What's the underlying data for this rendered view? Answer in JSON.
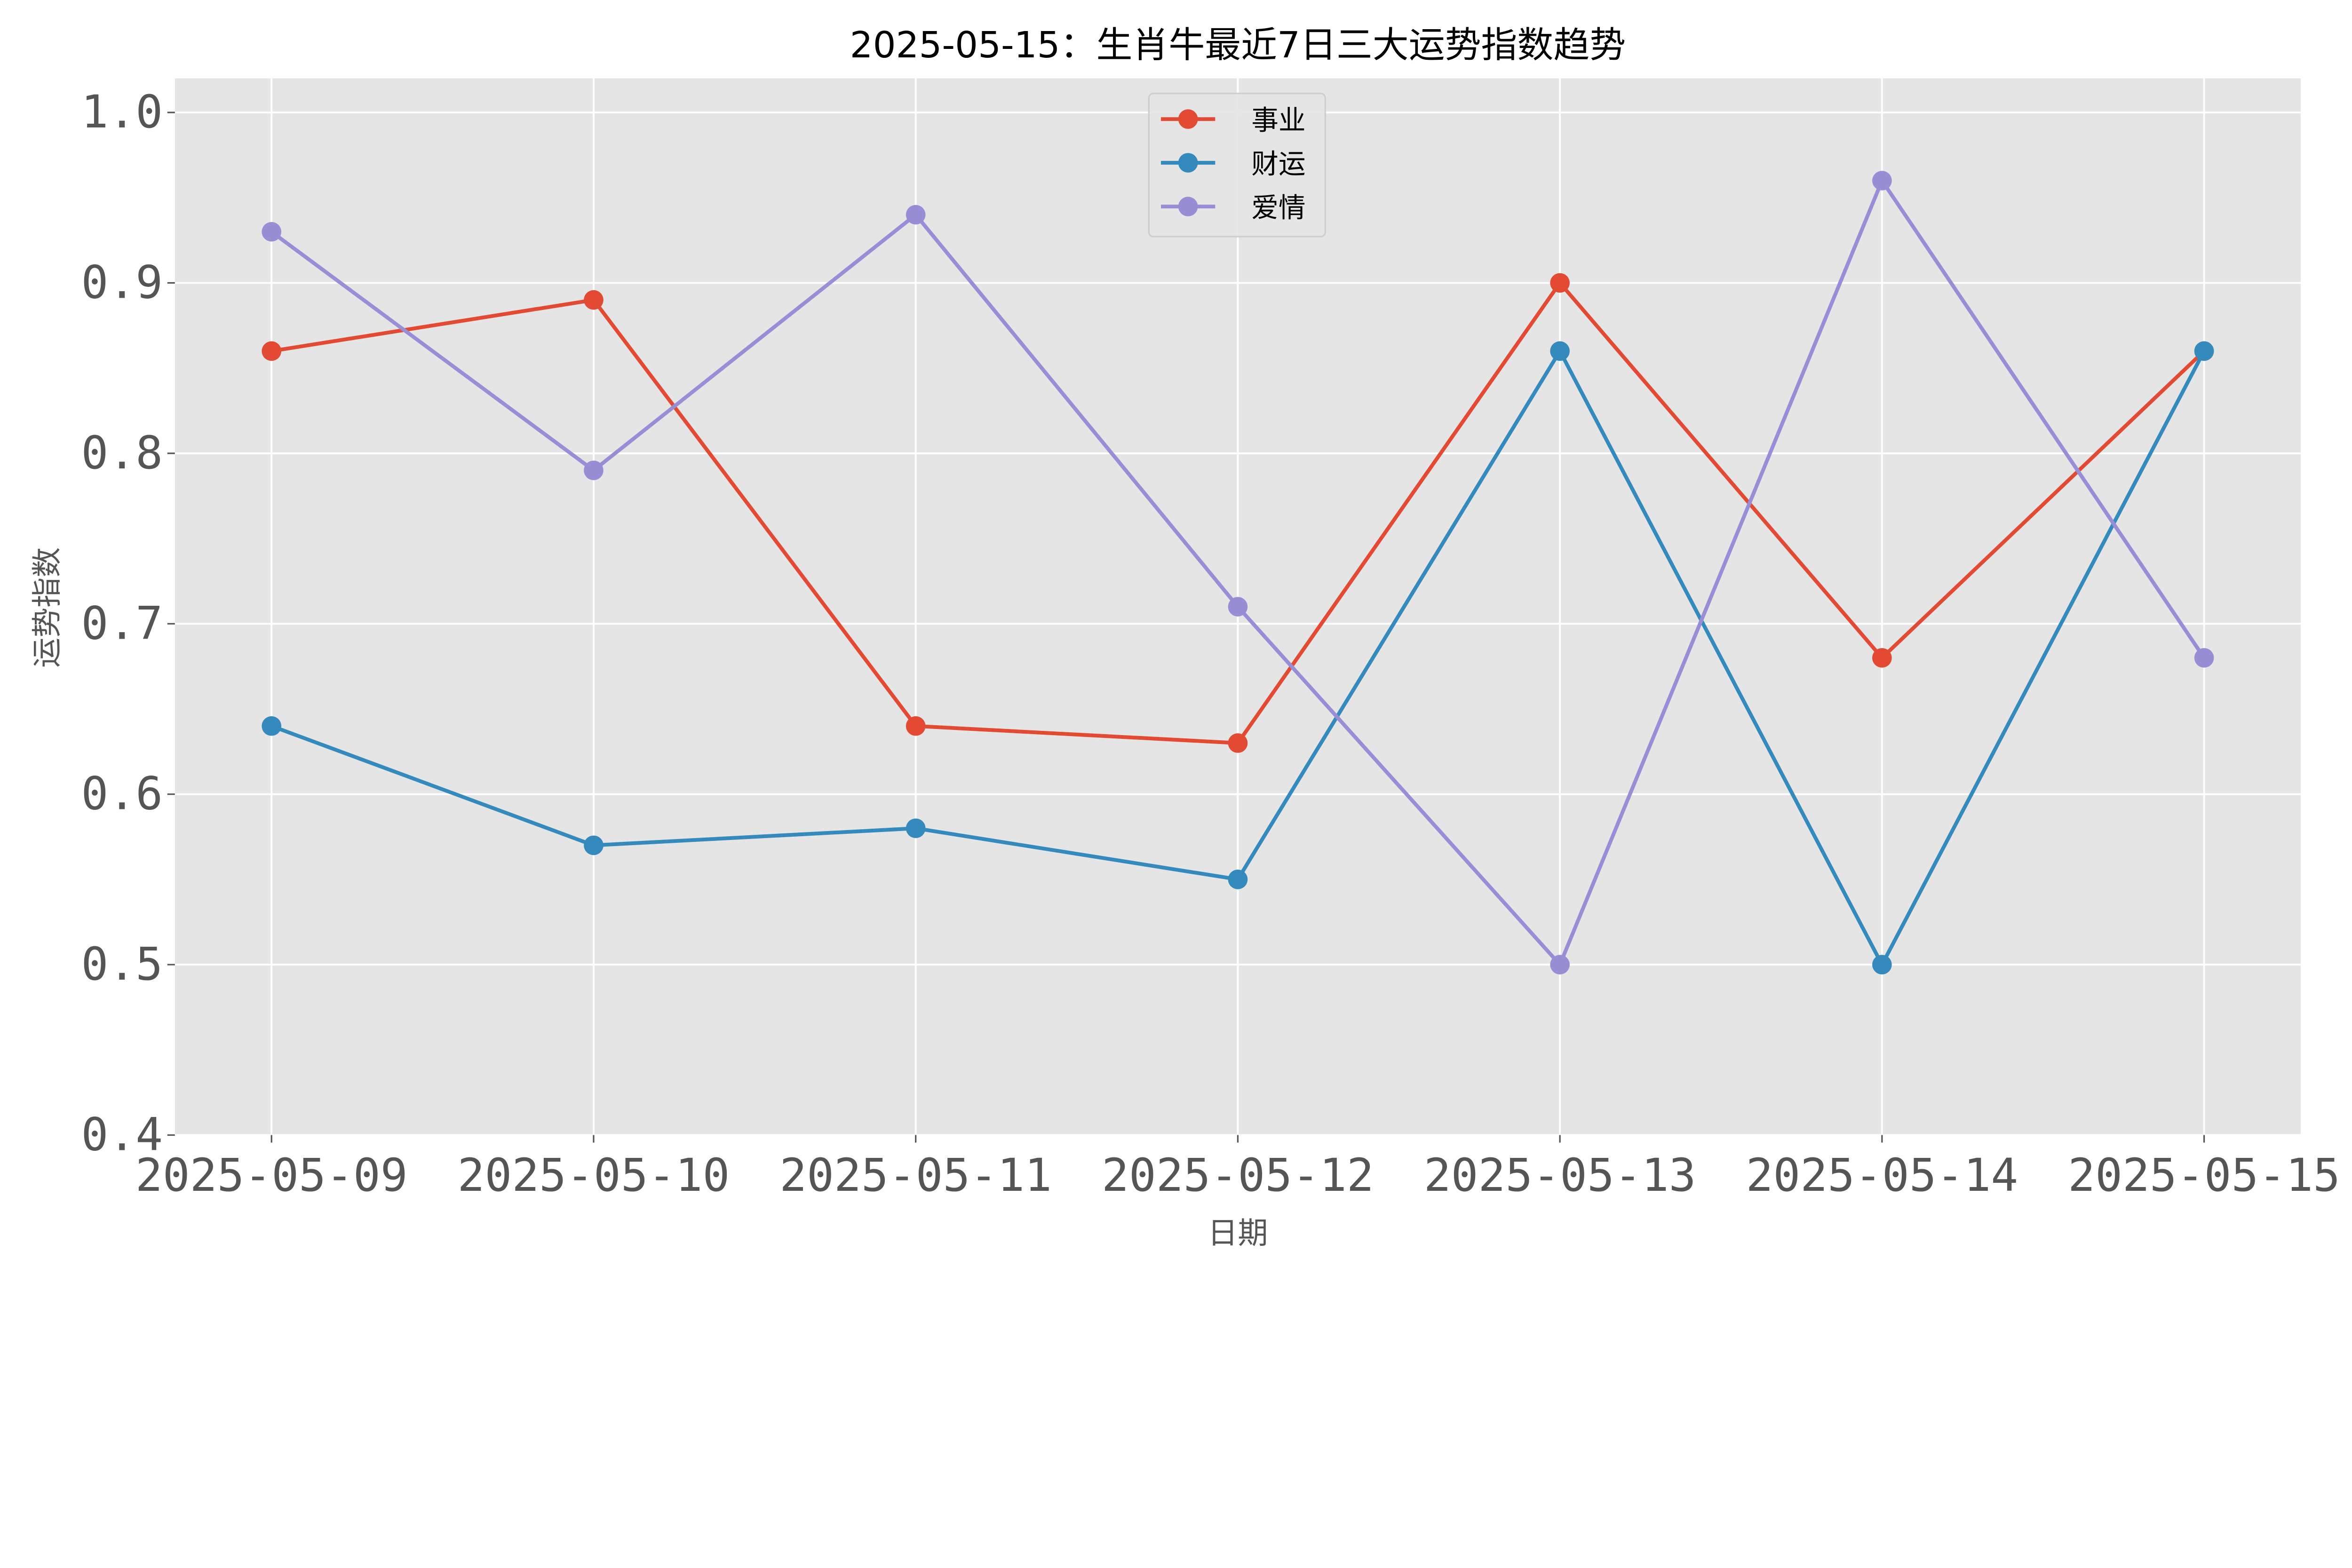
{
  "chart_data": {
    "type": "line",
    "title": "2025-05-15：生肖牛最近7日三大运势指数趋势",
    "xlabel": "日期",
    "ylabel": "运势指数",
    "categories": [
      "2025-05-09",
      "2025-05-10",
      "2025-05-11",
      "2025-05-12",
      "2025-05-13",
      "2025-05-14",
      "2025-05-15"
    ],
    "ylim": [
      0.4,
      1.02
    ],
    "yticks": [
      "0.4",
      "0.5",
      "0.6",
      "0.7",
      "0.8",
      "0.9",
      "1.0"
    ],
    "grid": true,
    "legend_position": "top-center",
    "series": [
      {
        "name": "事业",
        "color": "#E24A33",
        "values": [
          0.86,
          0.89,
          0.64,
          0.63,
          0.9,
          0.68,
          0.86
        ]
      },
      {
        "name": "财运",
        "color": "#348ABD",
        "values": [
          0.64,
          0.57,
          0.58,
          0.55,
          0.86,
          0.5,
          0.86
        ]
      },
      {
        "name": "爱情",
        "color": "#988ED5",
        "values": [
          0.93,
          0.79,
          0.94,
          0.71,
          0.5,
          0.96,
          0.68
        ]
      }
    ]
  }
}
